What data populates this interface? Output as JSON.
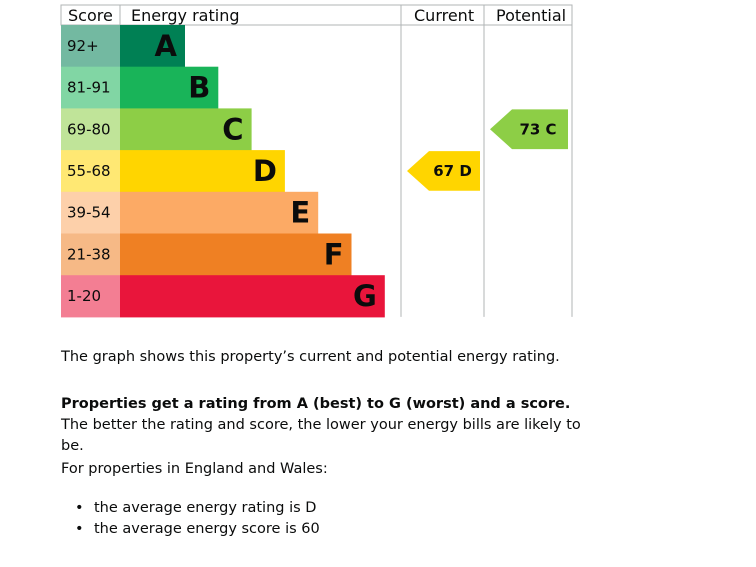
{
  "chart_data": {
    "type": "table",
    "headers": {
      "score": "Score",
      "rating": "Energy rating",
      "current": "Current",
      "potential": "Potential"
    },
    "bands": [
      {
        "letter": "A",
        "range": "92+",
        "color": "#008054"
      },
      {
        "letter": "B",
        "range": "81-91",
        "color": "#19b459"
      },
      {
        "letter": "C",
        "range": "69-80",
        "color": "#8dce46"
      },
      {
        "letter": "D",
        "range": "55-68",
        "color": "#ffd500"
      },
      {
        "letter": "E",
        "range": "39-54",
        "color": "#fcaa65"
      },
      {
        "letter": "F",
        "range": "21-38",
        "color": "#ef8023"
      },
      {
        "letter": "G",
        "range": "1-20",
        "color": "#e9153b"
      }
    ],
    "current": {
      "score": 67,
      "band": "D",
      "label": "67 D"
    },
    "potential": {
      "score": 73,
      "band": "C",
      "label": "73 C"
    }
  },
  "description": {
    "intro": "The graph shows this property’s current and potential energy rating.",
    "bold": "Properties get a rating from A (best) to G (worst) and a score.",
    "rest": " The better the rating and score, the lower your energy bills are likely to be.",
    "region": "For properties in England and Wales:",
    "bullets": [
      "the average energy rating is D",
      "the average energy score is 60"
    ]
  }
}
